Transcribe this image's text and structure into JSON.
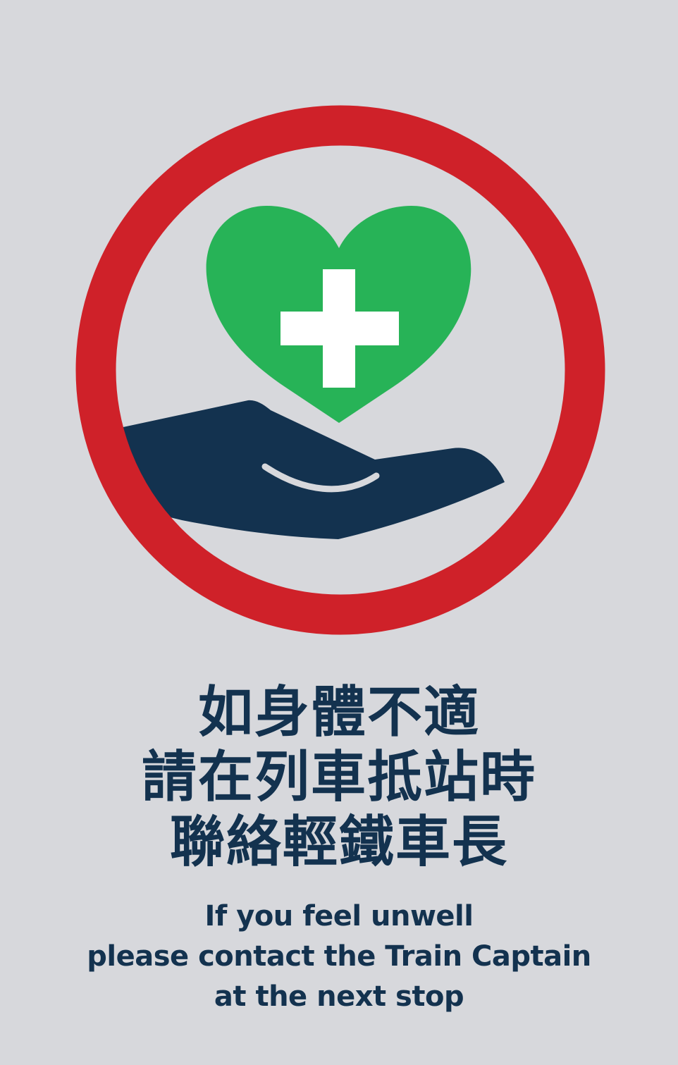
{
  "colors": {
    "background": "#d7d8dc",
    "ring": "#cf2129",
    "heart": "#27b357",
    "cross": "#ffffff",
    "hand": "#13324f",
    "text": "#13324f"
  },
  "icons": {
    "ring": "red-circle-ring",
    "heart": "green-heart-icon",
    "cross": "medical-cross-icon",
    "hand": "open-hand-icon"
  },
  "notice": {
    "chinese_lines": [
      "如身體不適",
      "請在列車抵站時",
      "聯絡輕鐵車長"
    ],
    "english_lines": [
      "If you feel unwell",
      "please contact the Train Captain",
      "at the next stop"
    ]
  }
}
